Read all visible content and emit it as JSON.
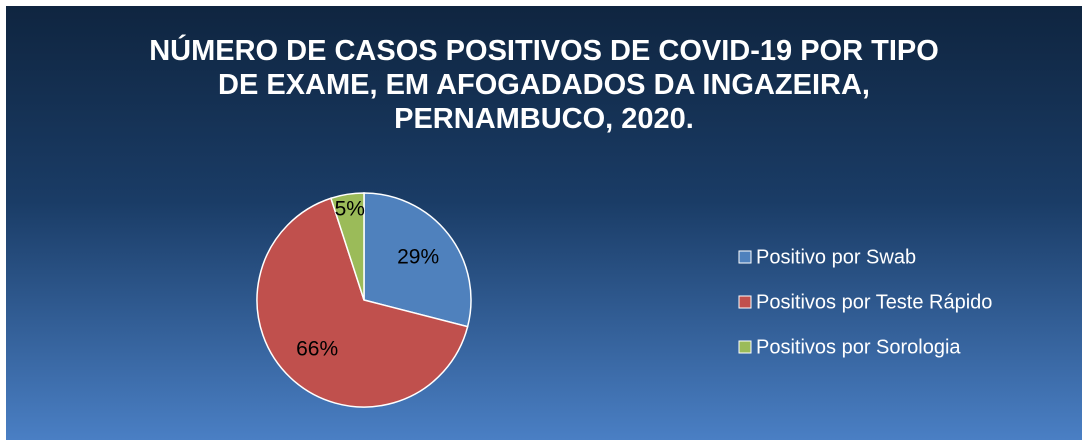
{
  "chart_data": {
    "type": "pie",
    "title": "NÚMERO DE CASOS POSITIVOS DE COVID-19 POR TIPO DE EXAME, EM AFOGADADOS DA INGAZEIRA, PERNAMBUCO, 2020.",
    "categories": [
      "Positivo por Swab",
      "Positivos por Teste Rápido",
      "Positivos por Sorologia"
    ],
    "values": [
      29,
      66,
      5
    ],
    "value_labels": [
      "29%",
      "66%",
      "5%"
    ],
    "colors": [
      "#4f81bd",
      "#c0504d",
      "#9bbb59"
    ],
    "legend": "right"
  }
}
